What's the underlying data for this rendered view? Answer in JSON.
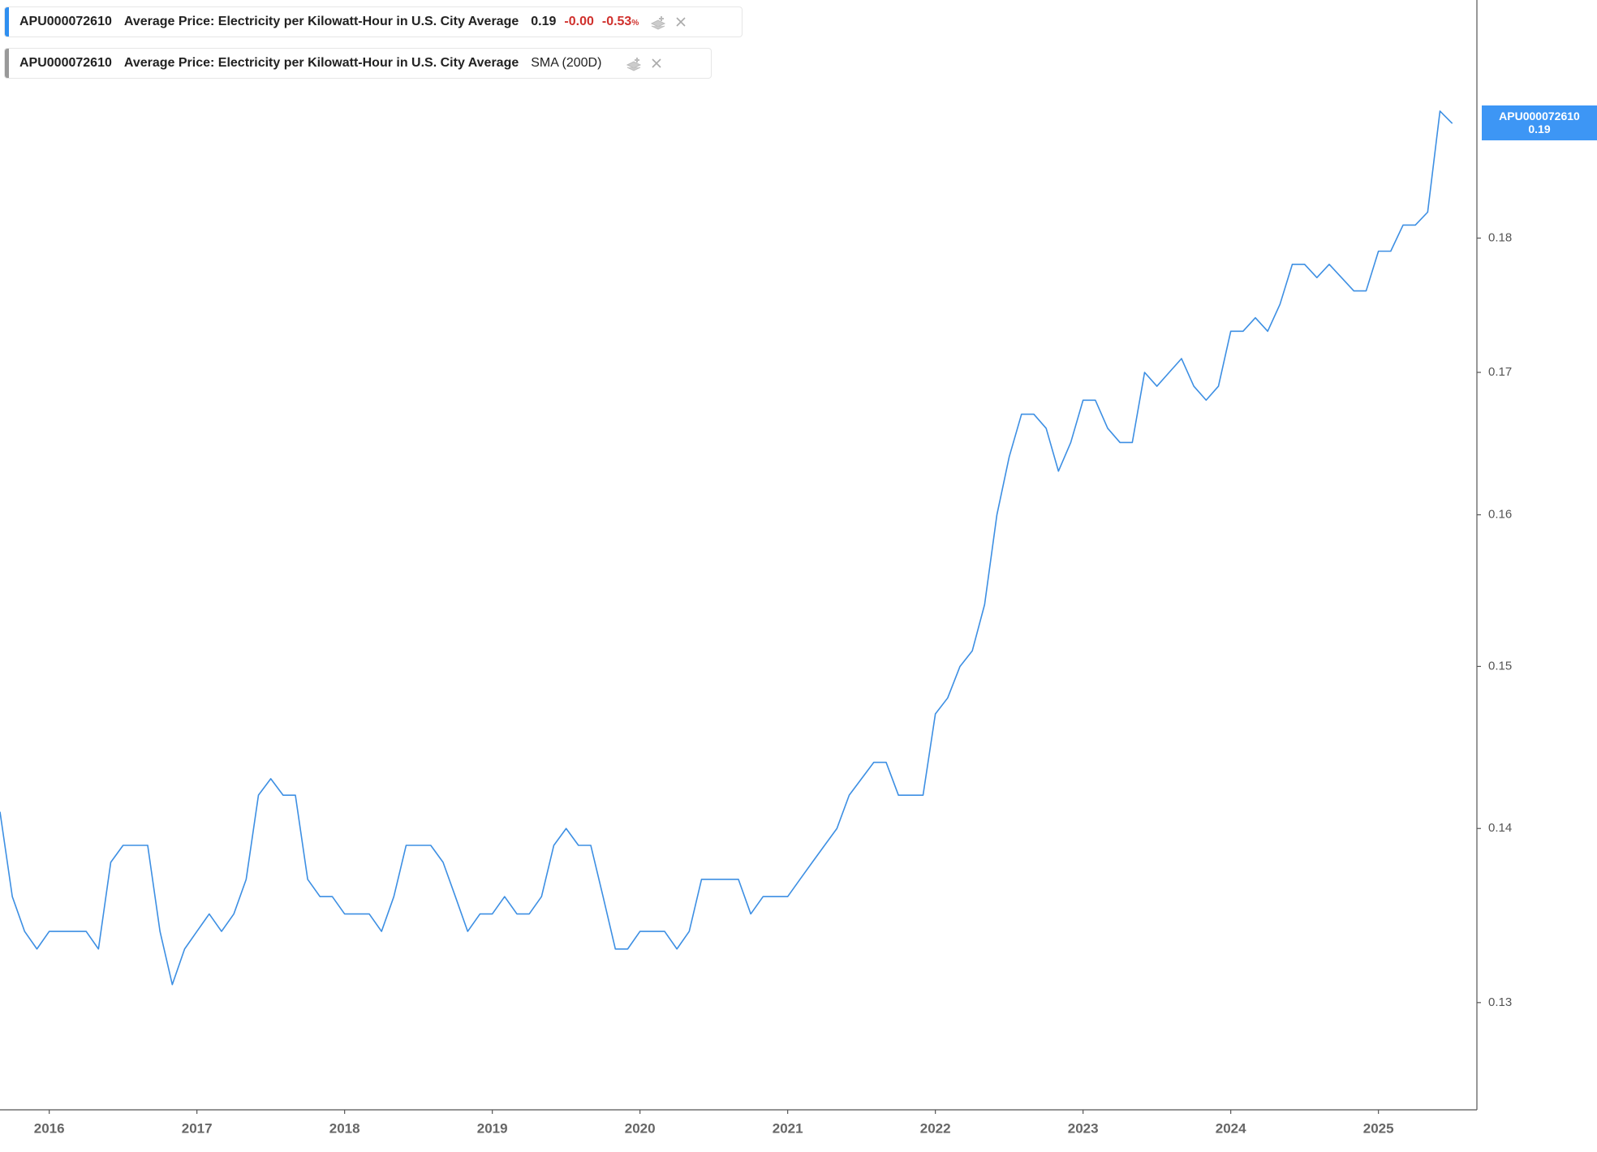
{
  "chart_data": {
    "type": "line",
    "log_y": true,
    "x": [
      "2015-09",
      "2015-10",
      "2015-11",
      "2015-12",
      "2016-01",
      "2016-02",
      "2016-03",
      "2016-04",
      "2016-05",
      "2016-06",
      "2016-07",
      "2016-08",
      "2016-09",
      "2016-10",
      "2016-11",
      "2016-12",
      "2017-01",
      "2017-02",
      "2017-03",
      "2017-04",
      "2017-05",
      "2017-06",
      "2017-07",
      "2017-08",
      "2017-09",
      "2017-10",
      "2017-11",
      "2017-12",
      "2018-01",
      "2018-02",
      "2018-03",
      "2018-04",
      "2018-05",
      "2018-06",
      "2018-07",
      "2018-08",
      "2018-09",
      "2018-10",
      "2018-11",
      "2018-12",
      "2019-01",
      "2019-02",
      "2019-03",
      "2019-04",
      "2019-05",
      "2019-06",
      "2019-07",
      "2019-08",
      "2019-09",
      "2019-10",
      "2019-11",
      "2019-12",
      "2020-01",
      "2020-02",
      "2020-03",
      "2020-04",
      "2020-05",
      "2020-06",
      "2020-07",
      "2020-08",
      "2020-09",
      "2020-10",
      "2020-11",
      "2020-12",
      "2021-01",
      "2021-02",
      "2021-03",
      "2021-04",
      "2021-05",
      "2021-06",
      "2021-07",
      "2021-08",
      "2021-09",
      "2021-10",
      "2021-11",
      "2021-12",
      "2022-01",
      "2022-02",
      "2022-03",
      "2022-04",
      "2022-05",
      "2022-06",
      "2022-07",
      "2022-08",
      "2022-09",
      "2022-10",
      "2022-11",
      "2022-12",
      "2023-01",
      "2023-02",
      "2023-03",
      "2023-04",
      "2023-05",
      "2023-06",
      "2023-07",
      "2023-08",
      "2023-09",
      "2023-10",
      "2023-11",
      "2023-12",
      "2024-01",
      "2024-02",
      "2024-03",
      "2024-04",
      "2024-05",
      "2024-06",
      "2024-07",
      "2024-08",
      "2024-09",
      "2024-10",
      "2024-11",
      "2024-12",
      "2025-01",
      "2025-02",
      "2025-03",
      "2025-04",
      "2025-05",
      "2025-06",
      "2025-07"
    ],
    "series": [
      {
        "name": "APU000072610",
        "color": "#3d8fe3",
        "values": [
          0.141,
          0.136,
          0.134,
          0.133,
          0.134,
          0.134,
          0.134,
          0.134,
          0.133,
          0.138,
          0.139,
          0.139,
          0.139,
          0.134,
          0.131,
          0.133,
          0.134,
          0.135,
          0.134,
          0.135,
          0.137,
          0.142,
          0.143,
          0.142,
          0.142,
          0.137,
          0.136,
          0.136,
          0.135,
          0.135,
          0.135,
          0.134,
          0.136,
          0.139,
          0.139,
          0.139,
          0.138,
          0.136,
          0.134,
          0.135,
          0.135,
          0.136,
          0.135,
          0.135,
          0.136,
          0.139,
          0.14,
          0.139,
          0.139,
          0.136,
          0.133,
          0.133,
          0.134,
          0.134,
          0.134,
          0.133,
          0.134,
          0.137,
          0.137,
          0.137,
          0.137,
          0.135,
          0.136,
          0.136,
          0.136,
          0.137,
          0.138,
          0.139,
          0.14,
          0.142,
          0.143,
          0.144,
          0.144,
          0.142,
          0.142,
          0.142,
          0.147,
          0.148,
          0.15,
          0.151,
          0.154,
          0.16,
          0.164,
          0.167,
          0.167,
          0.166,
          0.163,
          0.165,
          0.168,
          0.168,
          0.166,
          0.165,
          0.165,
          0.17,
          0.169,
          0.17,
          0.171,
          0.169,
          0.168,
          0.169,
          0.173,
          0.173,
          0.174,
          0.173,
          0.175,
          0.178,
          0.178,
          0.177,
          0.178,
          0.177,
          0.176,
          0.176,
          0.179,
          0.179,
          0.181,
          0.181,
          0.182,
          0.19,
          0.189
        ]
      }
    ],
    "xlim": [
      "2015-09",
      "2025-09"
    ],
    "xticks": [
      2016,
      2017,
      2018,
      2019,
      2020,
      2021,
      2022,
      2023,
      2024,
      2025
    ],
    "ylim": [
      0.1242,
      0.1992
    ],
    "yticks": [
      0.13,
      0.14,
      0.15,
      0.16,
      0.17,
      0.18
    ],
    "legend": [
      {
        "symbol": "APU000072610",
        "name": "Average Price: Electricity per Kilowatt-Hour in U.S. City Average",
        "last": "0.19",
        "change": "-0.00",
        "change_pct": "-0.53",
        "pct_unit": "%"
      },
      {
        "symbol": "APU000072610",
        "name": "Average Price: Electricity per Kilowatt-Hour in U.S. City Average",
        "study": "SMA (200D)"
      }
    ],
    "price_tag": {
      "symbol": "APU000072610",
      "value": "0.19"
    }
  }
}
